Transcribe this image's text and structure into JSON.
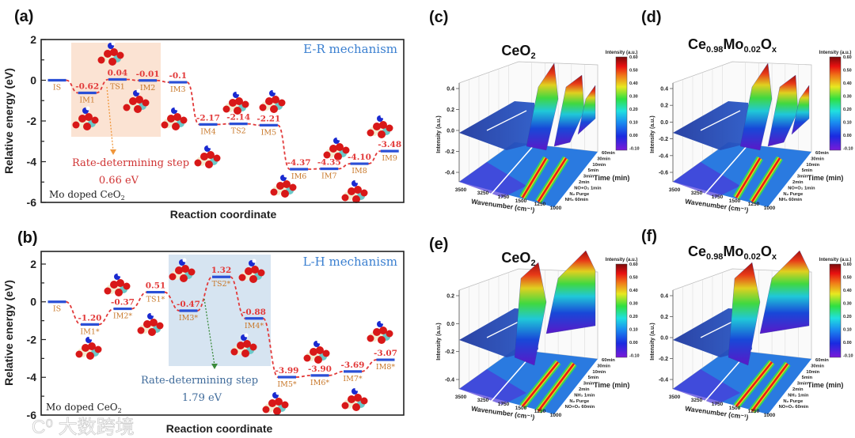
{
  "watermark": "大数跨境",
  "chart_data": [
    {
      "panel": "(a)",
      "type": "line",
      "subtype": "energy-profile",
      "title": "E-R mechanism",
      "xlabel": "Reaction coordinate",
      "ylabel": "Relative energy (eV)",
      "ylim": [
        -6,
        2
      ],
      "yticks": [
        2,
        0,
        -2,
        -4,
        -6
      ],
      "catalyst_label": "Mo doped CeO",
      "catalyst_sub": "2",
      "states": [
        "IS",
        "IM1",
        "TS1",
        "IM2",
        "IM3",
        "IM4",
        "TS2",
        "IM5",
        "IM6",
        "IM7",
        "IM8",
        "IM9"
      ],
      "energies": [
        0,
        -0.62,
        0.04,
        -0.01,
        -0.1,
        -2.17,
        -2.14,
        -2.21,
        -4.37,
        -4.35,
        -4.1,
        -3.48
      ],
      "energy_labels": [
        "",
        "-0.62",
        "0.04",
        "-0.01",
        "-0.1",
        "-2.17",
        "-2.14",
        "-2.21",
        "-4.37",
        "-4.35",
        "-4.10",
        "-3.48"
      ],
      "rds_label": "Rate-determining step",
      "rds_value": "0.66 eV",
      "highlight_states": [
        "IM1",
        "IM2"
      ],
      "colors": {
        "level": "#2a4fd6",
        "connector": "#e23a3a",
        "value": "#e23a3a",
        "state": "#c8782a",
        "highlight": "#fbe3d3",
        "title": "#3a7fd0",
        "rds": "#d03434",
        "arrow": "#f0963a"
      }
    },
    {
      "panel": "(b)",
      "type": "line",
      "subtype": "energy-profile",
      "title": "L-H mechanism",
      "xlabel": "Reaction coordinate",
      "ylabel": "Relative energy (eV)",
      "ylim": [
        -6,
        2.67
      ],
      "yticks": [
        2,
        0,
        -2,
        -4,
        -6
      ],
      "catalyst_label": "Mo doped CeO",
      "catalyst_sub": "2",
      "states": [
        "IS",
        "IM1*",
        "IM2*",
        "TS1*",
        "IM3*",
        "TS2*",
        "IM4*",
        "IM5*",
        "IM6*",
        "IM7*",
        "IM8*"
      ],
      "energies": [
        0,
        -1.2,
        -0.37,
        0.51,
        -0.47,
        1.32,
        -0.88,
        -3.99,
        -3.9,
        -3.69,
        -3.07
      ],
      "energy_labels": [
        "",
        "-1.20",
        "-0.37",
        "0.51",
        "-0.47",
        "1.32",
        "-0.88",
        "-3.99",
        "-3.90",
        "-3.69",
        "-3.07"
      ],
      "rds_label": "Rate-determining step",
      "rds_value": "1.79 eV",
      "highlight_states": [
        "IM3*",
        "IM4*"
      ],
      "colors": {
        "level": "#2a4fd6",
        "connector": "#e23a3a",
        "value": "#e23a3a",
        "state": "#c8782a",
        "highlight": "#d6e4f1",
        "title": "#3a7fd0",
        "rds": "#3e6a9a",
        "arrow": "#3a8a3a"
      }
    },
    {
      "panel": "(c)",
      "type": "heatmap",
      "subtype": "3d-surface",
      "title_parts": [
        {
          "t": "CeO"
        },
        {
          "t": "2",
          "sub": true
        }
      ],
      "zlabel": "Intensity (a.u.)",
      "xlabel": "Wavenumber (cm⁻¹)",
      "ylabel": "Time (min)",
      "zticks": [
        "0.4",
        "0.2",
        "0.0",
        "-0.2",
        "-0.4"
      ],
      "xticks": [
        "3500",
        "3250",
        "1750",
        "1500",
        "1250",
        "1000"
      ],
      "time_ticks": [
        "60min",
        "30min",
        "10min",
        "5min",
        "3min",
        "2min",
        "NO+O₂ 1min",
        "N₂ Purge",
        "NH₃ 60min"
      ],
      "colorbar_label": "Intensity (a.u.)",
      "colorbar_ticks": [
        "0.60",
        "0.50",
        "0.40",
        "0.30",
        "0.20",
        "0.10",
        "0.00",
        "-0.10"
      ],
      "peaks": 3
    },
    {
      "panel": "(d)",
      "type": "heatmap",
      "subtype": "3d-surface",
      "title_parts": [
        {
          "t": "Ce"
        },
        {
          "t": "0.98",
          "sub": true
        },
        {
          "t": "Mo"
        },
        {
          "t": "0.02",
          "sub": true
        },
        {
          "t": "O"
        },
        {
          "t": "x",
          "sub": true
        }
      ],
      "zlabel": "Intensity (a.u.)",
      "xlabel": "Wavenumber (cm⁻¹)",
      "ylabel": "Time (min)",
      "zticks": [
        "0.4",
        "0.2",
        "0.0",
        "-0.2",
        "-0.4",
        "-0.6"
      ],
      "xticks": [
        "3500",
        "3250",
        "1750",
        "1500",
        "1250",
        "1000"
      ],
      "time_ticks": [
        "60min",
        "30min",
        "10min",
        "5min",
        "3min",
        "2min",
        "NO+O₂ 1min",
        "N₂ Purge",
        "NH₃ 60min"
      ],
      "colorbar_label": "Intensity (a.u.)",
      "colorbar_ticks": [
        "0.60",
        "0.50",
        "0.40",
        "0.30",
        "0.20",
        "0.10",
        "0.00",
        "-0.10"
      ],
      "peaks": 3
    },
    {
      "panel": "(e)",
      "type": "heatmap",
      "subtype": "3d-surface",
      "title_parts": [
        {
          "t": "CeO"
        },
        {
          "t": "2",
          "sub": true
        }
      ],
      "zlabel": "Intensity (a.u.)",
      "xlabel": "Wavenumber (cm⁻¹)",
      "ylabel": "Time (min)",
      "zticks": [
        "0.2",
        "0.0",
        "-0.2",
        "-0.4"
      ],
      "xticks": [
        "3500",
        "3250",
        "1750",
        "1500",
        "1250",
        "1000"
      ],
      "time_ticks": [
        "60min",
        "30min",
        "10min",
        "5min",
        "3min",
        "2min",
        "NH₃ 1min",
        "N₂ Purge",
        "NO+O₂ 60min"
      ],
      "colorbar_label": "Intensity (a.u.)",
      "colorbar_ticks": [
        "0.60",
        "0.50",
        "0.40",
        "0.30",
        "0.20",
        "0.10",
        "0.00",
        "-0.10"
      ],
      "peaks": 2
    },
    {
      "panel": "(f)",
      "type": "heatmap",
      "subtype": "3d-surface",
      "title_parts": [
        {
          "t": "Ce"
        },
        {
          "t": "0.98",
          "sub": true
        },
        {
          "t": "Mo"
        },
        {
          "t": "0.02",
          "sub": true
        },
        {
          "t": "O"
        },
        {
          "t": "x",
          "sub": true
        }
      ],
      "zlabel": "Intensity (a.u.)",
      "xlabel": "Wavenumber (cm⁻¹)",
      "ylabel": "Time (min)",
      "zticks": [
        "0.4",
        "0.2",
        "0.0",
        "-0.2",
        "-0.4"
      ],
      "xticks": [
        "3500",
        "3250",
        "1750",
        "1500",
        "1250",
        "1000"
      ],
      "time_ticks": [
        "60min",
        "30min",
        "10min",
        "5min",
        "3min",
        "2min",
        "NH₃ 1min",
        "N₂ Purge",
        "NO+O₂ 60min"
      ],
      "colorbar_label": "Intensity (a.u.)",
      "colorbar_ticks": [
        "0.60",
        "0.50",
        "0.40",
        "0.30",
        "0.20",
        "0.10",
        "0.00",
        "-0.10"
      ],
      "peaks": 2
    }
  ]
}
